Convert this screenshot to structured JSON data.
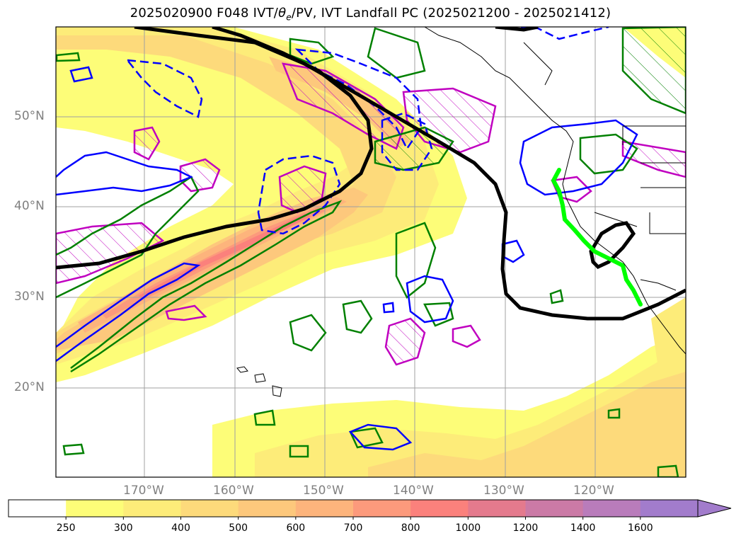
{
  "title": "2025020900 F048 IVT/θe/PV, IVT Landfall PC (2025021200 - 2025021412)",
  "title_parts": {
    "prefix": "2025020900 F048 IVT/",
    "theta": "θ",
    "sub": "e",
    "suffix": "/PV, IVT Landfall PC (2025021200 - 2025021412)"
  },
  "lat_labels": [
    "50°N",
    "40°N",
    "30°N",
    "20°N"
  ],
  "lon_labels": [
    "170°W",
    "160°W",
    "150°W",
    "140°W",
    "130°W",
    "120°W"
  ],
  "colorbar": {
    "labels": [
      "250",
      "300",
      "400",
      "500",
      "600",
      "700",
      "800",
      "1000",
      "1200",
      "1400",
      "1600"
    ],
    "colors": [
      "#ffffff",
      "#fdfd78",
      "#fdec79",
      "#fdda7b",
      "#fdc87c",
      "#fdb47c",
      "#fc9a7c",
      "#fb817c",
      "#e47a8d",
      "#cb7aa6",
      "#b97cbb",
      "#a27ccc"
    ]
  },
  "legend_colors": {
    "ivt_fill_low": "#fdfd78",
    "ivt_fill_high": "#fb817c",
    "theta_contour": "#000000",
    "pv_positive": "#0000ff",
    "pv_dashed": "#0000ff",
    "vorticity": "#008000",
    "pv_hatched": "#c000c0",
    "landfall_pc": "#00ff00"
  }
}
